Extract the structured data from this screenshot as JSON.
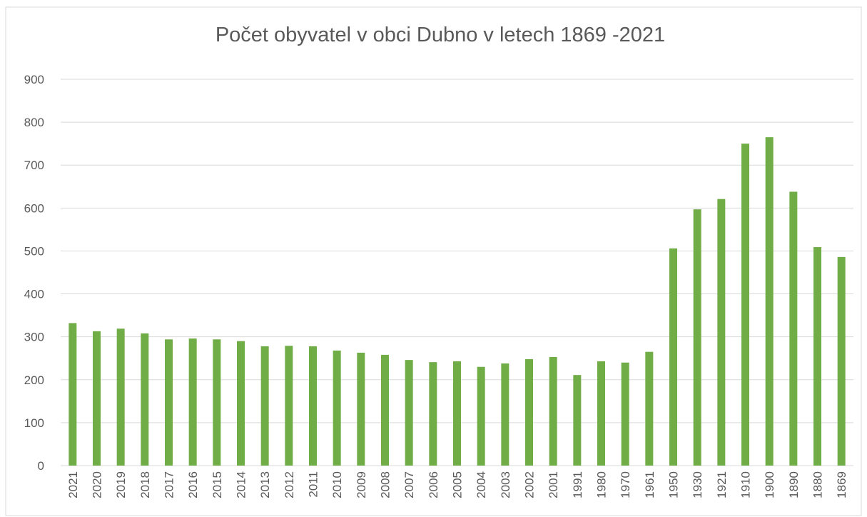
{
  "chart_data": {
    "type": "bar",
    "title": "Počet obyvatel v obci Dubno v letech 1869 -2021",
    "categories": [
      "2021",
      "2020",
      "2019",
      "2018",
      "2017",
      "2016",
      "2015",
      "2014",
      "2013",
      "2012",
      "2011",
      "2010",
      "2009",
      "2008",
      "2007",
      "2006",
      "2005",
      "2004",
      "2003",
      "2002",
      "2001",
      "1991",
      "1980",
      "1970",
      "1961",
      "1950",
      "1930",
      "1921",
      "1910",
      "1900",
      "1890",
      "1880",
      "1869"
    ],
    "values": [
      332,
      313,
      319,
      308,
      294,
      296,
      294,
      290,
      278,
      279,
      278,
      268,
      263,
      258,
      246,
      241,
      243,
      230,
      238,
      248,
      253,
      211,
      243,
      240,
      265,
      506,
      597,
      621,
      750,
      765,
      638,
      509,
      486
    ],
    "color": "#70ad47",
    "ylim": [
      0,
      900
    ],
    "yticks": [
      0,
      100,
      200,
      300,
      400,
      500,
      600,
      700,
      800,
      900
    ],
    "grid": true
  }
}
